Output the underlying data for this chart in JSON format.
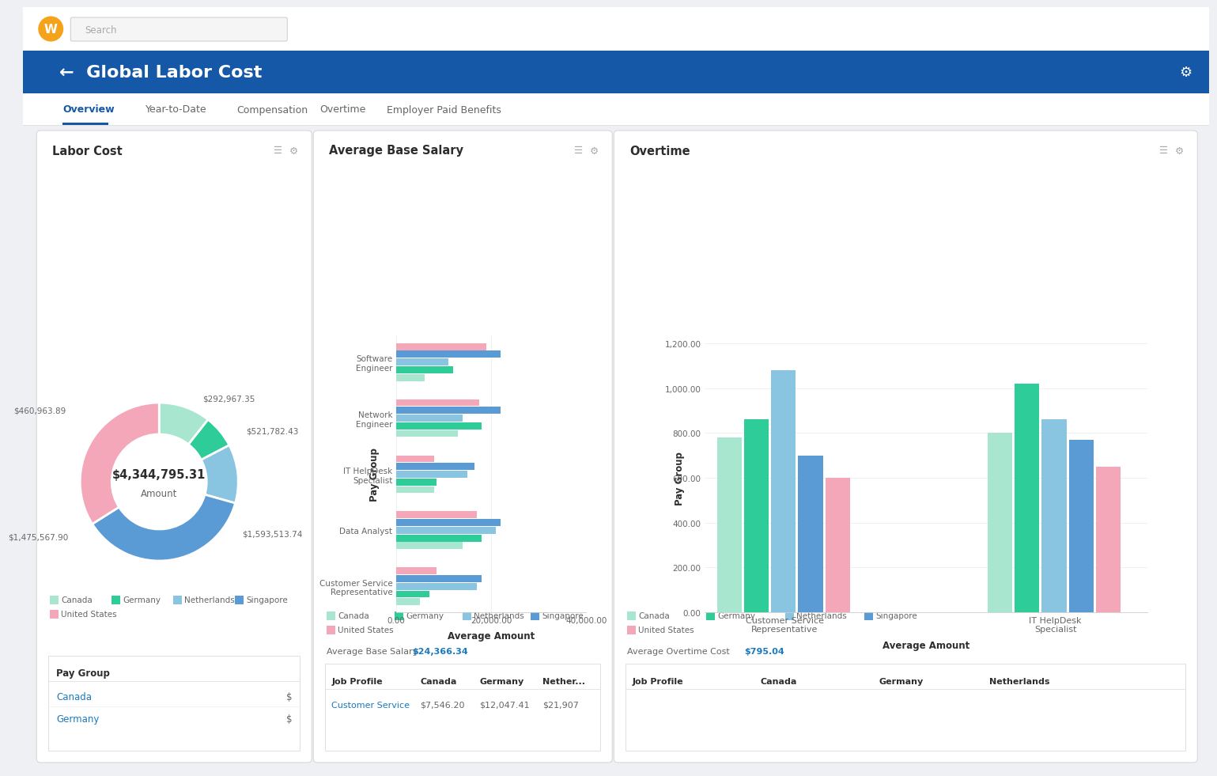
{
  "title": "Global Labor Cost",
  "nav_tabs": [
    "Overview",
    "Year-to-Date",
    "Compensation",
    "Overtime",
    "Employer Paid Benefits"
  ],
  "active_tab": "Overview",
  "donut": {
    "title": "Labor Cost",
    "center_value": "$4,344,795.31",
    "center_label": "Amount",
    "segments": [
      {
        "label": "Canada",
        "value": 460963.89,
        "color": "#a8e6cf"
      },
      {
        "label": "Germany",
        "value": 292967.35,
        "color": "#2ecc99"
      },
      {
        "label": "Netherlands",
        "value": 521782.43,
        "color": "#89c4e1"
      },
      {
        "label": "Singapore",
        "value": 1593513.74,
        "color": "#5b9bd5"
      },
      {
        "label": "United States",
        "value": 1475567.9,
        "color": "#f4a7b9"
      }
    ]
  },
  "bar_salary": {
    "title": "Average Base Salary",
    "xlabel": "Average Amount",
    "ylabel": "Pay Group",
    "xmax": 40000,
    "xticks": [
      0,
      20000,
      40000
    ],
    "xticklabels": [
      "0.00",
      "20,000.00",
      "40,000.00"
    ],
    "categories": [
      "Customer Service\nRepresentative",
      "Data Analyst",
      "IT HelpDesk\nSpecialist",
      "Network\nEngineer",
      "Software\nEngineer"
    ],
    "series": {
      "Canada": [
        5000,
        14000,
        8000,
        13000,
        6000
      ],
      "Germany": [
        7000,
        18000,
        8500,
        18000,
        12000
      ],
      "Netherlands": [
        17000,
        21000,
        15000,
        14000,
        11000
      ],
      "Singapore": [
        18000,
        22000,
        16500,
        22000,
        22000
      ],
      "United States": [
        8500,
        17000,
        8000,
        17500,
        19000
      ]
    },
    "avg_label": "Average Base Salary",
    "avg_value": "$24,366.34"
  },
  "bar_overtime": {
    "title": "Overtime",
    "xlabel": "Average Amount",
    "ylabel": "Pay Group",
    "ymax": 1200,
    "yticks": [
      0,
      200,
      400,
      600,
      800,
      1000,
      1200
    ],
    "yticklabels": [
      "0.00",
      "200.00",
      "400.00",
      "600.00",
      "800.00",
      "1,000.00",
      "1,200.00"
    ],
    "categories": [
      "Customer Service\nRepresentative",
      "IT HelpDesk\nSpecialist"
    ],
    "series": {
      "Canada": [
        780,
        800
      ],
      "Germany": [
        860,
        1020
      ],
      "Netherlands": [
        1080,
        860
      ],
      "Singapore": [
        700,
        770
      ],
      "United States": [
        600,
        650
      ]
    },
    "avg_label": "Average Overtime Cost",
    "avg_value": "$795.04"
  },
  "legend_items": [
    "Canada",
    "Germany",
    "Netherlands",
    "Singapore",
    "United States"
  ],
  "legend_colors": [
    "#a8e6cf",
    "#2ecc99",
    "#89c4e1",
    "#5b9bd5",
    "#f4a7b9"
  ],
  "bg_color": "#eef0f3",
  "panel_color": "#ffffff",
  "header_color": "#1558a8",
  "text_dark": "#2d2d2d",
  "text_medium": "#666666",
  "text_blue": "#1a7abf",
  "border_color": "#dddddd",
  "topbar_color": "#ffffff",
  "nav_bg": "#ffffff"
}
